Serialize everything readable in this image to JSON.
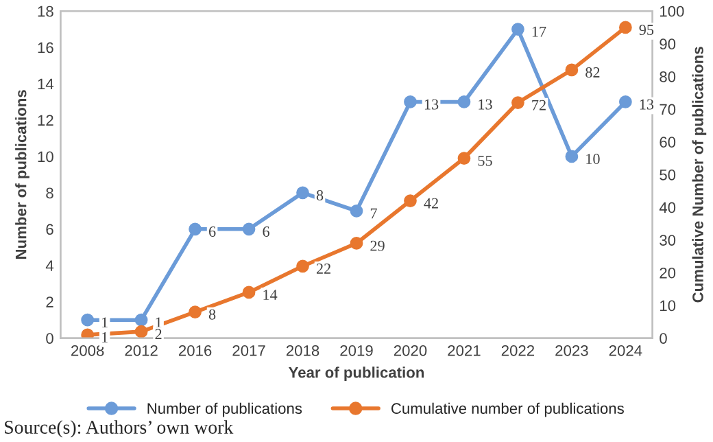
{
  "chart_data": {
    "type": "line",
    "xlabel": "Year of publication",
    "ylabel": "Number of publications",
    "y2label": "Cumulative Number of publications",
    "categories": [
      "2008",
      "2012",
      "2016",
      "2017",
      "2018",
      "2019",
      "2020",
      "2021",
      "2022",
      "2023",
      "2024"
    ],
    "series": [
      {
        "name": "Number of publications",
        "color": "#6b9bd8",
        "values": [
          1,
          1,
          6,
          6,
          8,
          7,
          13,
          13,
          17,
          10,
          13
        ]
      },
      {
        "name": "Cumulative number of publications",
        "color": "#e8772e",
        "axis": "y2",
        "values": [
          1,
          2,
          8,
          14,
          22,
          29,
          42,
          55,
          72,
          82,
          95
        ]
      }
    ],
    "ylim": [
      0,
      18
    ],
    "yticks": [
      0,
      2,
      4,
      6,
      8,
      10,
      12,
      14,
      16,
      18
    ],
    "y2lim": [
      0,
      100
    ],
    "y2ticks": [
      0,
      10,
      20,
      30,
      40,
      50,
      60,
      70,
      80,
      90,
      100
    ],
    "data_labels": true,
    "marker": "circle",
    "line_style": "solid",
    "grid": false,
    "legend": "bottom",
    "annotations": [
      "Source(s): Authors’ own work"
    ]
  }
}
